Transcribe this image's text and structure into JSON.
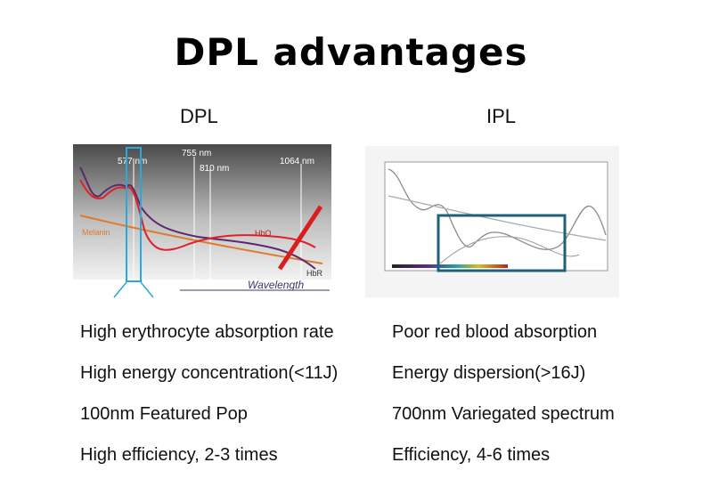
{
  "title": "DPL advantages",
  "left": {
    "heading": "DPL",
    "chart": {
      "wavelength_labels": [
        "577 nm",
        "755 nm",
        "810 nm",
        "1064 nm"
      ],
      "curve_labels": [
        "Melanin",
        "HbO",
        "HbR"
      ],
      "axis_label": "Wavelength"
    },
    "points": [
      "High erythrocyte absorption rate",
      "High energy concentration(<11J)",
      "100nm Featured Pop",
      "High efficiency, 2-3 times"
    ]
  },
  "right": {
    "heading": "IPL",
    "points": [
      "Poor red blood absorption",
      "Energy dispersion(>16J)",
      "700nm Variegated spectrum",
      "Efficiency, 4-6 times"
    ]
  },
  "colors": {
    "highlight_box": "#2aa7dc",
    "ipl_box": "#1f5f7a",
    "hbo_curve": "#e0202a",
    "hbr_curve": "#5a2a6a",
    "melanin_curve": "#e07a30"
  }
}
